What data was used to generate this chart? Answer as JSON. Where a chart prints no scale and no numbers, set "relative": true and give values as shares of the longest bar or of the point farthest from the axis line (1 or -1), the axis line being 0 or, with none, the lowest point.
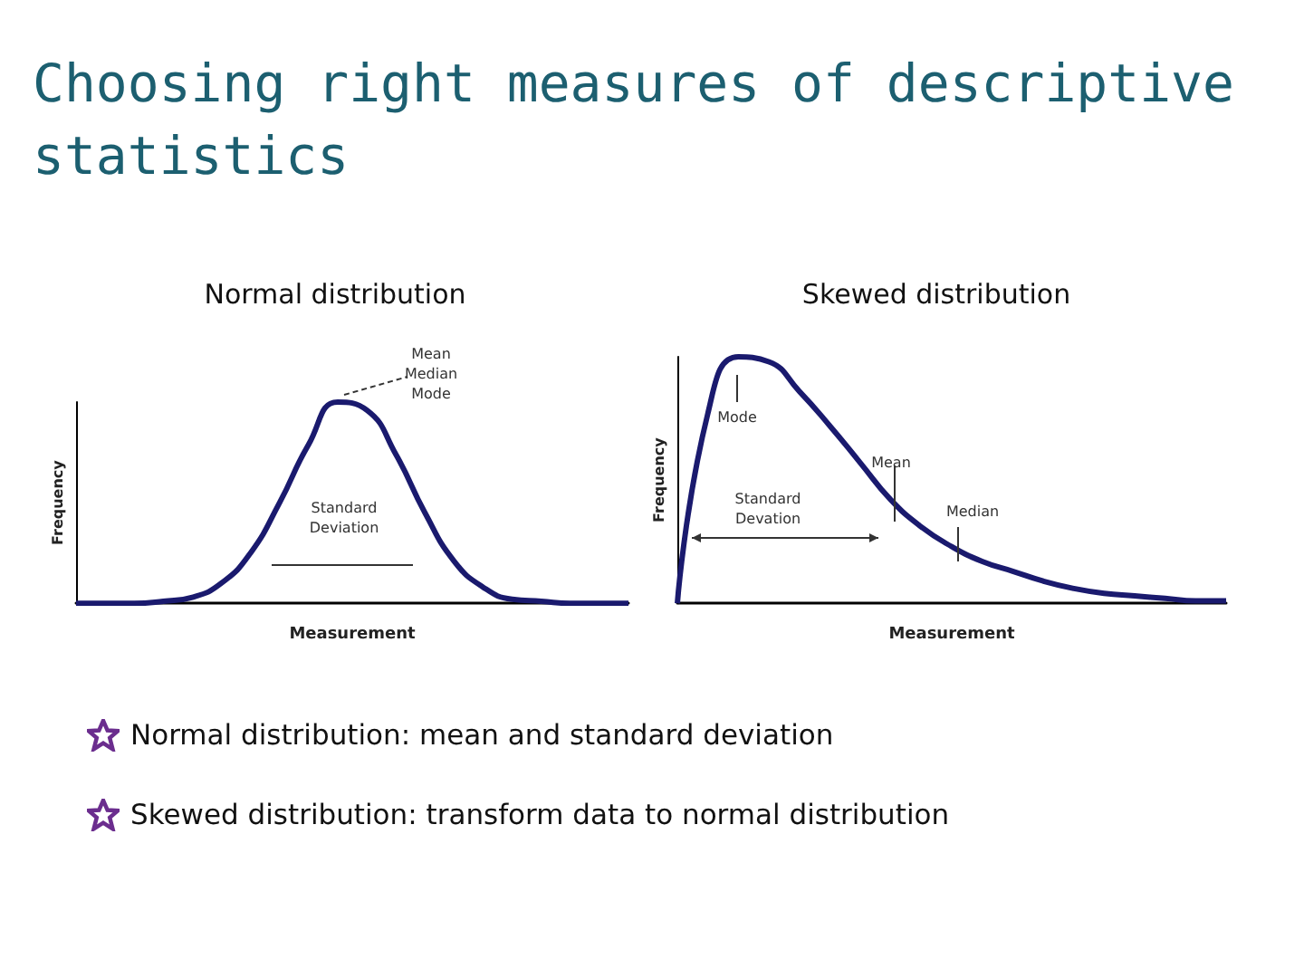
{
  "chart_data": [
    {
      "type": "other",
      "title": "Choosing right measures of descriptive statistics"
    },
    {
      "type": "line",
      "title": "Normal distribution",
      "xlabel": "Measurement",
      "ylabel": "Frequency",
      "relative": true,
      "color": "#1a1a6e",
      "categories": [
        null,
        null,
        null,
        null,
        null,
        null,
        null,
        null,
        null,
        null,
        null,
        null,
        null,
        null,
        null,
        null,
        null,
        null,
        null,
        null
      ],
      "values": [
        0,
        0,
        0,
        0.01,
        0.03,
        0.1,
        0.25,
        0.5,
        0.79,
        1,
        0.96,
        0.74,
        0.45,
        0.21,
        0.08,
        0.02,
        0.01,
        0,
        0,
        0
      ],
      "annotations": [
        "Mean\nMedian\nMode",
        "Standard\nDeviation"
      ]
    },
    {
      "type": "line",
      "title": "Skewed distribution",
      "xlabel": "Measurement",
      "ylabel": "Frequency",
      "relative": true,
      "color": "#1a1a6e",
      "categories": [
        null,
        null,
        null,
        null,
        null,
        null,
        null,
        null,
        null,
        null,
        null,
        null,
        null,
        null,
        null,
        null,
        null,
        null,
        null
      ],
      "values": [
        0,
        0.77,
        1,
        0.98,
        0.86,
        0.72,
        0.57,
        0.42,
        0.31,
        0.23,
        0.17,
        0.13,
        0.09,
        0.06,
        0.04,
        0.03,
        0.02,
        0.01,
        0.01
      ],
      "annotations": [
        "Mode",
        "Mean",
        "Median",
        "Standard\nDevation"
      ]
    },
    {
      "type": "other",
      "annotations": [
        "Normal distribution: mean and standard deviation",
        "Skewed distribution: transform data to normal distribution"
      ]
    }
  ]
}
